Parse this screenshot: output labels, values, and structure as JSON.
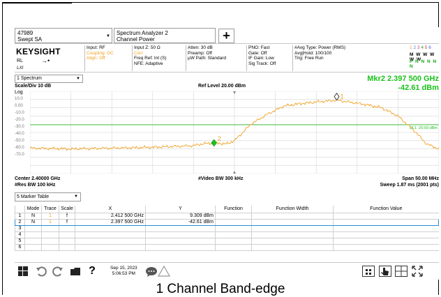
{
  "tabs": [
    {
      "line1": "47989",
      "line2": "Swept SA"
    },
    {
      "line1": "Spectrum Analyzer 2",
      "line2": "Channel Power"
    }
  ],
  "add_label": "+",
  "params": {
    "brand": "KEYSIGHT",
    "rl": "RL",
    "lxi": "LXI",
    "col1": [
      "Input: RF",
      "Coupling: DC",
      "Align: Off"
    ],
    "col2": [
      "Input Z: 50 Ω",
      "Corr",
      "Freq Ref: Int (S)",
      "NFE: Adaptive"
    ],
    "col3": [
      "Atten: 30 dB",
      "Preamp: Off",
      "µW Path: Standard"
    ],
    "col4": [
      "PNO: Fast",
      "Gate: Off",
      "IF Gain: Low",
      "Sig Track: Off"
    ],
    "col5": [
      "#Avg Type: Power (RMS)",
      "Avg|Hold: 100/100",
      "Trig: Free Run"
    ],
    "trace_numbers": [
      "1",
      "2",
      "3",
      "4",
      "5",
      "6"
    ],
    "trace_row_m": "M W W W W W",
    "trace_row_p": "P N N N N N"
  },
  "spectrum_select": "1 Spectrum",
  "marker_readout": {
    "freq": "Mkr2  2.397 500 GHz",
    "level": "-42.61 dBm"
  },
  "scale_div": "Scale/Div 10 dB",
  "ref_level": "Ref Level 20.00 dBm",
  "log_label": "Log",
  "y_ticks": [
    "10.0",
    "0.00",
    "-10.0",
    "-20.0",
    "-30.0",
    "-40.0",
    "-50.0",
    "-60.0",
    "-70.0"
  ],
  "display_line_label": "DL1 -20.69 dBm",
  "marker1_label": "1",
  "marker2_label": "2",
  "center_freq": "Center 2.40000 GHz",
  "res_bw": "#Res BW 100 kHz",
  "video_bw": "#Video BW 300 kHz",
  "span": "Span 50.00 MHz",
  "sweep": "Sweep 1.87 ms (2001 pts)",
  "marker_table_select": "5 Marker Table",
  "table": {
    "headers": [
      "",
      "Mode",
      "Trace",
      "Scale",
      "X",
      "Y",
      "Function",
      "Function Width",
      "Function Value"
    ],
    "rows": [
      [
        "1",
        "N",
        "1",
        "f",
        "2.412 500 GHz",
        "9.309 dBm",
        "",
        "",
        ""
      ],
      [
        "2",
        "N",
        "1",
        "f",
        "2.397 500 GHz",
        "-42.61 dBm",
        "",
        "",
        ""
      ],
      [
        "3",
        "",
        "",
        "",
        "",
        "",
        "",
        "",
        ""
      ],
      [
        "4",
        "",
        "",
        "",
        "",
        "",
        "",
        "",
        ""
      ],
      [
        "5",
        "",
        "",
        "",
        "",
        "",
        "",
        "",
        ""
      ],
      [
        "6",
        "",
        "",
        "",
        "",
        "",
        "",
        "",
        ""
      ]
    ]
  },
  "status": {
    "date": "Sep 15, 2023",
    "time": "5:06:53 PM"
  },
  "caption": "1 Channel Band-edge",
  "colors": {
    "trace": "#f0a020",
    "marker": "#19c219",
    "display_line": "#19c219",
    "selection": "#2a8cd6"
  },
  "chart_data": {
    "type": "line",
    "title": "",
    "xlabel": "",
    "ylabel": "",
    "x_range_ghz": [
      2.375,
      2.425
    ],
    "ylim": [
      -80,
      20
    ],
    "y_unit": "dBm",
    "display_line_dbm": -20.69,
    "series": [
      {
        "x": [
          2.375,
          2.38,
          2.385,
          2.39,
          2.395,
          2.396,
          2.3975,
          2.399,
          2.4,
          2.401,
          2.402,
          2.404,
          2.406,
          2.408,
          2.41,
          2.4125,
          2.414,
          2.416,
          2.418,
          2.42,
          2.422,
          2.4235,
          2.425
        ],
        "y": [
          -49,
          -50,
          -49,
          -48,
          -46,
          -44,
          -42.61,
          -44,
          -40,
          -30,
          -20,
          -8,
          2,
          5,
          7,
          9.309,
          7,
          4,
          0,
          -10,
          -28,
          -44,
          -50
        ]
      }
    ],
    "markers": [
      {
        "label": "1",
        "x": 2.4125,
        "y": 9.309
      },
      {
        "label": "2",
        "x": 2.3975,
        "y": -42.61
      }
    ]
  }
}
